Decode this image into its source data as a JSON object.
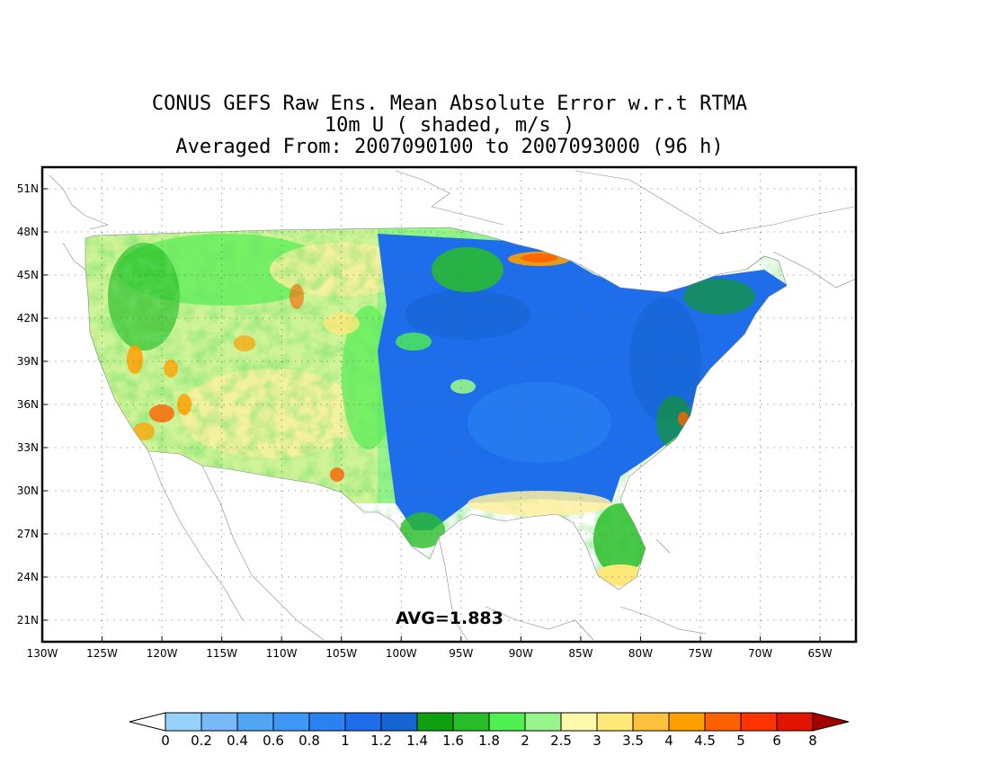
{
  "title": {
    "line1": "CONUS GEFS Raw Ens. Mean Absolute Error w.r.t RTMA",
    "line2": "10m U ( shaded, m/s )",
    "line3": "Averaged From: 2007090100 to 2007093000 (96 h)"
  },
  "map": {
    "lon_range": [
      -130,
      -62
    ],
    "lat_range": [
      19.5,
      52.5
    ],
    "lon_ticks": [
      {
        "value": -130,
        "label": "130W"
      },
      {
        "value": -125,
        "label": "125W"
      },
      {
        "value": -120,
        "label": "120W"
      },
      {
        "value": -115,
        "label": "115W"
      },
      {
        "value": -110,
        "label": "110W"
      },
      {
        "value": -105,
        "label": "105W"
      },
      {
        "value": -100,
        "label": "100W"
      },
      {
        "value": -95,
        "label": "95W"
      },
      {
        "value": -90,
        "label": "90W"
      },
      {
        "value": -85,
        "label": "85W"
      },
      {
        "value": -80,
        "label": "80W"
      },
      {
        "value": -75,
        "label": "75W"
      },
      {
        "value": -70,
        "label": "70W"
      },
      {
        "value": -65,
        "label": "65W"
      }
    ],
    "lat_ticks": [
      {
        "value": 51,
        "label": "51N"
      },
      {
        "value": 48,
        "label": "48N"
      },
      {
        "value": 45,
        "label": "45N"
      },
      {
        "value": 42,
        "label": "42N"
      },
      {
        "value": 39,
        "label": "39N"
      },
      {
        "value": 36,
        "label": "36N"
      },
      {
        "value": 33,
        "label": "33N"
      },
      {
        "value": 30,
        "label": "30N"
      },
      {
        "value": 27,
        "label": "27N"
      },
      {
        "value": 24,
        "label": "24N"
      },
      {
        "value": 21,
        "label": "21N"
      }
    ],
    "grid": true,
    "avg_label": "AVG=1.883"
  },
  "colorbar": {
    "labels": [
      "0",
      "0.2",
      "0.4",
      "0.6",
      "0.8",
      "1",
      "1.2",
      "1.4",
      "1.6",
      "1.8",
      "2",
      "2.5",
      "3",
      "3.5",
      "4",
      "4.5",
      "5",
      "6",
      "8"
    ],
    "colors": [
      "#96d2fa",
      "#78b9fa",
      "#50a5f5",
      "#3c97f5",
      "#2882f0",
      "#1e6eeb",
      "#1464d2",
      "#0fa00f",
      "#28be28",
      "#50f050",
      "#96f58c",
      "#fffaaa",
      "#ffe878",
      "#ffc03c",
      "#ffa000",
      "#ff6000",
      "#ff3200",
      "#e11400",
      "#a50000"
    ],
    "under_color": "#ffffff",
    "over_color": "#a50000"
  }
}
